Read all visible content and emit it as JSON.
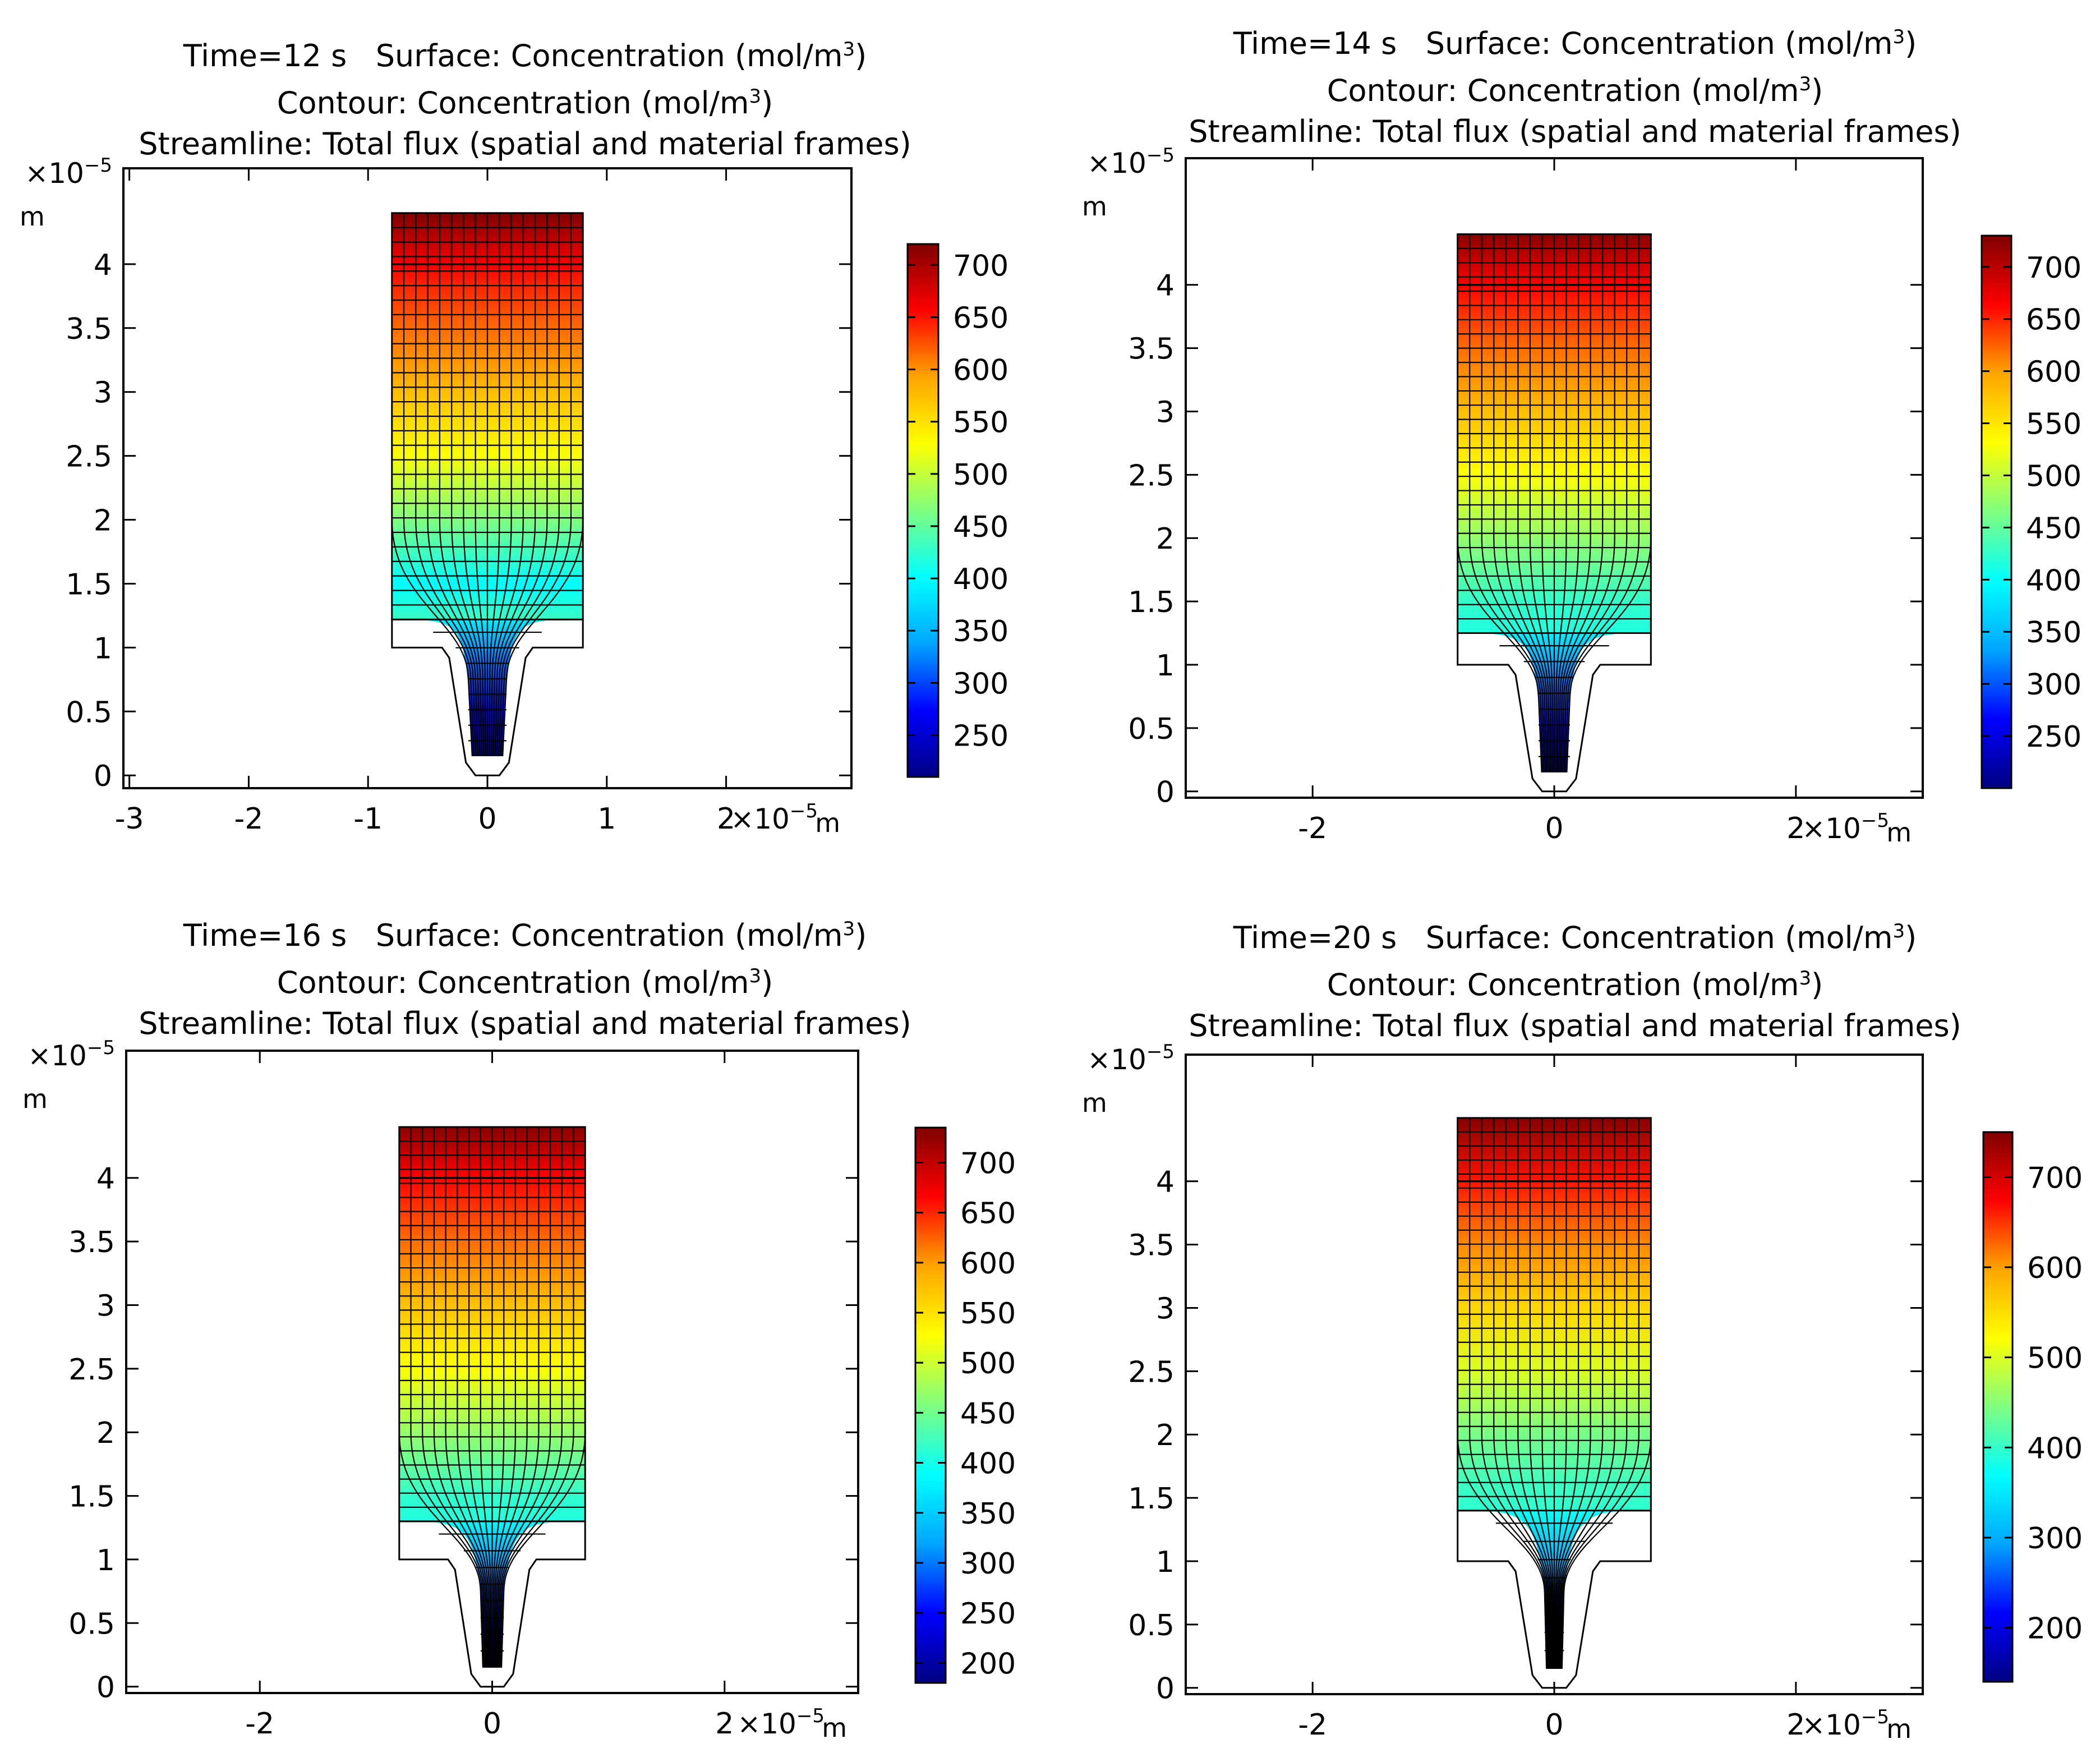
{
  "colors": {
    "colormap": [
      "#000082",
      "#0000ff",
      "#00a5ff",
      "#00ffff",
      "#7fff7f",
      "#ffff00",
      "#ffa500",
      "#ff0000",
      "#800000"
    ],
    "grid_line": "#000000",
    "axis": "#000000",
    "background": "#ffffff"
  },
  "common": {
    "surface_label": "Surface: Concentration (mol/m",
    "contour_label": "Contour: Concentration (mol/m",
    "cube": "3",
    "close_paren": ")",
    "streamline_label": "Streamline: Total flux (spatial and material frames)",
    "axis_exp_prefix": "×10",
    "axis_exp": "−5",
    "unit": "m"
  },
  "chart_data": [
    {
      "type": "heatmap",
      "time_label": "Time=12 s",
      "xlim": [
        -3.05,
        3.05
      ],
      "ylim": [
        -0.1,
        4.75
      ],
      "xticks": [
        -3,
        -2,
        -1,
        0,
        1,
        2
      ],
      "xtick_labels": [
        "-3",
        "-2",
        "-1",
        "0",
        "1",
        "2"
      ],
      "yticks": [
        0,
        0.5,
        1,
        1.5,
        2,
        2.5,
        3,
        3.5,
        4
      ],
      "ytick_labels": [
        "0",
        "0.5",
        "1",
        "1.5",
        "2",
        "2.5",
        "3",
        "3.5",
        "4"
      ],
      "color_range": [
        210,
        720
      ],
      "colorbar_ticks": [
        250,
        300,
        350,
        400,
        450,
        500,
        550,
        600,
        650,
        700
      ],
      "colorbar_labels": [
        "250",
        "300",
        "350",
        "400",
        "450",
        "500",
        "550",
        "600",
        "650",
        "700"
      ],
      "surface_profile": [
        [
          1.22,
          430
        ],
        [
          1.5,
          400
        ],
        [
          2.0,
          465
        ],
        [
          2.5,
          527
        ],
        [
          3.0,
          575
        ],
        [
          3.5,
          615
        ],
        [
          4.0,
          660
        ],
        [
          4.4,
          720
        ]
      ],
      "channel_profile": [
        [
          0.15,
          210
        ],
        [
          0.5,
          260
        ],
        [
          0.9,
          320
        ],
        [
          1.22,
          390
        ]
      ],
      "geometry": {
        "reservoir_halfwidth": 0.8,
        "reservoir_top": 4.4,
        "gap_top": 1.22,
        "gap_bottom": 1.0,
        "channel_halfwidth": 0.16,
        "channel_bottom": 0.15
      }
    },
    {
      "type": "heatmap",
      "time_label": "Time=14 s",
      "xlim": [
        -3.05,
        3.05
      ],
      "ylim": [
        -0.05,
        5.0
      ],
      "xticks": [
        -2,
        0,
        2
      ],
      "xtick_labels": [
        "-2",
        "0",
        "2"
      ],
      "yticks": [
        0,
        0.5,
        1,
        1.5,
        2,
        2.5,
        3,
        3.5,
        4
      ],
      "ytick_labels": [
        "0",
        "0.5",
        "1",
        "1.5",
        "2",
        "2.5",
        "3",
        "3.5",
        "4"
      ],
      "color_range": [
        200,
        730
      ],
      "colorbar_ticks": [
        250,
        300,
        350,
        400,
        450,
        500,
        550,
        600,
        650,
        700
      ],
      "colorbar_labels": [
        "250",
        "300",
        "350",
        "400",
        "450",
        "500",
        "550",
        "600",
        "650",
        "700"
      ],
      "surface_profile": [
        [
          1.25,
          415
        ],
        [
          1.5,
          425
        ],
        [
          2.0,
          475
        ],
        [
          2.5,
          530
        ],
        [
          3.0,
          578
        ],
        [
          3.5,
          620
        ],
        [
          4.0,
          665
        ],
        [
          4.4,
          725
        ]
      ],
      "channel_profile": [
        [
          0.15,
          200
        ],
        [
          0.5,
          255
        ],
        [
          0.9,
          320
        ],
        [
          1.25,
          390
        ]
      ],
      "geometry": {
        "reservoir_halfwidth": 0.8,
        "reservoir_top": 4.4,
        "gap_top": 1.25,
        "gap_bottom": 1.0,
        "channel_halfwidth": 0.13,
        "channel_bottom": 0.15
      }
    },
    {
      "type": "heatmap",
      "time_label": "Time=16 s",
      "xlim": [
        -3.15,
        3.15
      ],
      "ylim": [
        -0.05,
        5.0
      ],
      "xticks": [
        -2,
        0,
        2
      ],
      "xtick_labels": [
        "-2",
        "0",
        "2"
      ],
      "yticks": [
        0,
        0.5,
        1,
        1.5,
        2,
        2.5,
        3,
        3.5,
        4
      ],
      "ytick_labels": [
        "0",
        "0.5",
        "1",
        "1.5",
        "2",
        "2.5",
        "3",
        "3.5",
        "4"
      ],
      "color_range": [
        180,
        735
      ],
      "colorbar_ticks": [
        200,
        250,
        300,
        350,
        400,
        450,
        500,
        550,
        600,
        650,
        700
      ],
      "colorbar_labels": [
        "200",
        "250",
        "300",
        "350",
        "400",
        "450",
        "500",
        "550",
        "600",
        "650",
        "700"
      ],
      "surface_profile": [
        [
          1.3,
          405
        ],
        [
          1.5,
          415
        ],
        [
          2.0,
          470
        ],
        [
          2.5,
          525
        ],
        [
          3.0,
          575
        ],
        [
          3.5,
          620
        ],
        [
          4.0,
          665
        ],
        [
          4.4,
          730
        ]
      ],
      "channel_profile": [
        [
          0.15,
          185
        ],
        [
          0.5,
          240
        ],
        [
          0.9,
          310
        ],
        [
          1.3,
          385
        ]
      ],
      "geometry": {
        "reservoir_halfwidth": 0.8,
        "reservoir_top": 4.4,
        "gap_top": 1.3,
        "gap_bottom": 1.0,
        "channel_halfwidth": 0.1,
        "channel_bottom": 0.15
      }
    },
    {
      "type": "heatmap",
      "time_label": "Time=20 s",
      "xlim": [
        -3.05,
        3.05
      ],
      "ylim": [
        -0.05,
        5.0
      ],
      "xticks": [
        -2,
        0,
        2
      ],
      "xtick_labels": [
        "-2",
        "0",
        "2"
      ],
      "yticks": [
        0,
        0.5,
        1,
        1.5,
        2,
        2.5,
        3,
        3.5,
        4
      ],
      "ytick_labels": [
        "0",
        "0.5",
        "1",
        "1.5",
        "2",
        "2.5",
        "3",
        "3.5",
        "4"
      ],
      "color_range": [
        140,
        750
      ],
      "colorbar_ticks": [
        200,
        300,
        400,
        500,
        600,
        700
      ],
      "colorbar_labels": [
        "200",
        "300",
        "400",
        "500",
        "600",
        "700"
      ],
      "surface_profile": [
        [
          1.4,
          395
        ],
        [
          1.6,
          405
        ],
        [
          2.0,
          440
        ],
        [
          2.5,
          500
        ],
        [
          3.0,
          555
        ],
        [
          3.5,
          610
        ],
        [
          4.0,
          665
        ],
        [
          4.5,
          745
        ]
      ],
      "channel_profile": [
        [
          0.15,
          150
        ],
        [
          0.5,
          210
        ],
        [
          0.9,
          290
        ],
        [
          1.4,
          375
        ]
      ],
      "geometry": {
        "reservoir_halfwidth": 0.8,
        "reservoir_top": 4.5,
        "gap_top": 1.4,
        "gap_bottom": 1.0,
        "channel_halfwidth": 0.08,
        "channel_bottom": 0.15
      }
    }
  ]
}
